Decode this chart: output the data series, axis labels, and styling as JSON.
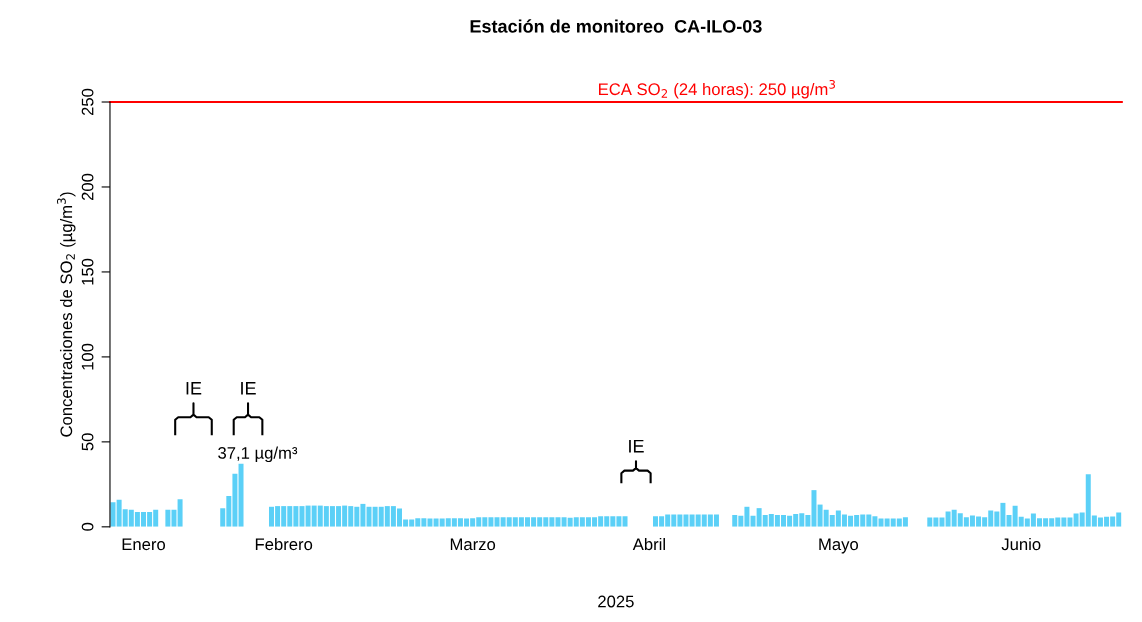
{
  "chart_data": {
    "type": "bar",
    "title": "Estación de monitoreo  CA-ILO-03",
    "xlabel": "2025",
    "ylabel": "Concentraciones de SO$_{2}$ (µg/m$^{3}$)",
    "categories": [
      null,
      null,
      null,
      null,
      null,
      "Enero",
      null,
      null,
      null,
      null,
      null,
      null,
      null,
      null,
      null,
      null,
      null,
      null,
      null,
      null,
      null,
      null,
      null,
      null,
      null,
      null,
      null,
      null,
      "Febrero",
      null,
      null,
      null,
      null,
      null,
      null,
      null,
      null,
      null,
      null,
      null,
      null,
      null,
      null,
      null,
      null,
      null,
      null,
      null,
      null,
      null,
      null,
      null,
      null,
      null,
      null,
      null,
      null,
      null,
      null,
      "Marzo",
      null,
      null,
      null,
      null,
      null,
      null,
      null,
      null,
      null,
      null,
      null,
      null,
      null,
      null,
      null,
      null,
      null,
      null,
      null,
      null,
      null,
      null,
      null,
      null,
      null,
      null,
      null,
      null,
      "Abril",
      null,
      null,
      null,
      null,
      null,
      null,
      null,
      null,
      null,
      null,
      null,
      null,
      null,
      null,
      null,
      null,
      null,
      null,
      null,
      null,
      null,
      null,
      null,
      null,
      null,
      null,
      null,
      null,
      null,
      null,
      "Mayo",
      null,
      null,
      null,
      null,
      null,
      null,
      null,
      null,
      null,
      null,
      null,
      null,
      null,
      null,
      null,
      null,
      null,
      null,
      null,
      null,
      null,
      null,
      null,
      null,
      null,
      null,
      null,
      null,
      null,
      "Junio",
      null,
      null,
      null,
      null,
      null,
      null,
      null,
      null,
      null,
      null,
      null,
      null,
      null,
      null,
      null,
      null
    ],
    "values": [
      14.5,
      15.9,
      10.4,
      10,
      8.8,
      8.8,
      8.8,
      10,
      null,
      10,
      10,
      16.3,
      null,
      null,
      null,
      null,
      null,
      null,
      11,
      18.2,
      31.2,
      37.1,
      null,
      null,
      null,
      null,
      11.8,
      12.2,
      12.2,
      12.2,
      12.2,
      12.2,
      12.5,
      12.5,
      12.5,
      12.2,
      12.2,
      12.2,
      12.5,
      12.2,
      11.8,
      13.5,
      11.8,
      11.8,
      11.8,
      12.2,
      12.2,
      10.8,
      4.3,
      4.3,
      5.1,
      5.1,
      4.9,
      4.9,
      4.9,
      5.1,
      5.1,
      5.1,
      4.9,
      5.1,
      5.7,
      5.7,
      5.7,
      5.7,
      5.7,
      5.7,
      5.7,
      5.7,
      5.7,
      5.7,
      5.7,
      5.7,
      5.7,
      5.7,
      5.7,
      5.3,
      5.7,
      5.7,
      5.7,
      5.7,
      6.3,
      6.3,
      6.3,
      6.3,
      6.3,
      null,
      null,
      null,
      null,
      6.3,
      6.3,
      7.3,
      7.3,
      7.3,
      7.3,
      7.3,
      7.3,
      7.3,
      7.3,
      7.3,
      null,
      null,
      6.9,
      6.5,
      11.8,
      6.5,
      11,
      6.9,
      7.5,
      6.9,
      6.9,
      6.5,
      7.5,
      8,
      6.9,
      21.6,
      13.1,
      10,
      6.9,
      9.6,
      7.3,
      6.5,
      6.9,
      7.3,
      7.3,
      6.3,
      4.9,
      4.9,
      4.9,
      4.9,
      5.7,
      null,
      null,
      null,
      5.5,
      5.5,
      5.5,
      9,
      10,
      8,
      5.7,
      6.7,
      6.1,
      5.7,
      9.6,
      9,
      14.1,
      6.9,
      12.4,
      5.9,
      4.9,
      7.8,
      5.1,
      5.1,
      5.1,
      5.5,
      5.5,
      5.5,
      7.8,
      8.4,
      31,
      6.7,
      5.5,
      5.9,
      6.1,
      8.4
    ],
    "value_labels": [
      null,
      null,
      null,
      null,
      null,
      null,
      null,
      null,
      null,
      null,
      null,
      null,
      null,
      null,
      null,
      null,
      null,
      null,
      null,
      null,
      null,
      "37,1 µg/m³",
      null,
      null,
      null,
      null,
      null,
      null,
      null,
      null,
      null,
      null,
      null,
      null,
      null,
      null,
      null,
      null,
      null,
      null,
      null,
      null,
      null,
      null,
      null,
      null,
      null,
      null,
      null,
      null,
      null,
      null,
      null,
      null,
      null,
      null,
      null,
      null,
      null,
      null,
      null,
      null,
      null,
      null,
      null,
      null,
      null,
      null,
      null,
      null,
      null,
      null,
      null,
      null,
      null,
      null,
      null,
      null,
      null,
      null,
      null,
      null,
      null,
      null,
      null,
      null,
      null,
      null,
      null,
      null,
      null,
      null,
      null,
      null,
      null,
      null,
      null,
      null,
      null,
      null,
      null,
      null,
      null,
      null,
      null,
      null,
      null,
      null,
      null,
      null,
      null,
      null,
      null,
      null,
      null,
      null,
      null,
      null,
      null,
      null,
      null,
      null,
      null,
      null,
      null,
      null,
      null,
      null,
      null,
      null,
      null,
      null,
      null,
      null,
      null,
      null,
      null,
      null,
      null,
      null,
      null,
      null,
      null,
      null,
      null,
      null,
      null,
      null,
      null,
      null,
      null,
      null,
      null,
      null,
      null,
      null,
      null,
      null,
      null,
      null,
      null,
      null,
      null,
      null,
      null,
      null
    ],
    "color": "#5bd0f7",
    "ylim": [
      0,
      250
    ],
    "yticks": [
      0,
      50,
      100,
      150,
      200,
      250
    ],
    "ref_lines": [
      {
        "axis": "y",
        "value": 250,
        "label": "ECA SO$_{2}$ (24 horas): 250 µg/m$^{3}$",
        "color": "#ff0000"
      }
    ],
    "annotations": [
      "IE",
      "IE",
      "IE"
    ],
    "grid": false,
    "legend": false
  }
}
